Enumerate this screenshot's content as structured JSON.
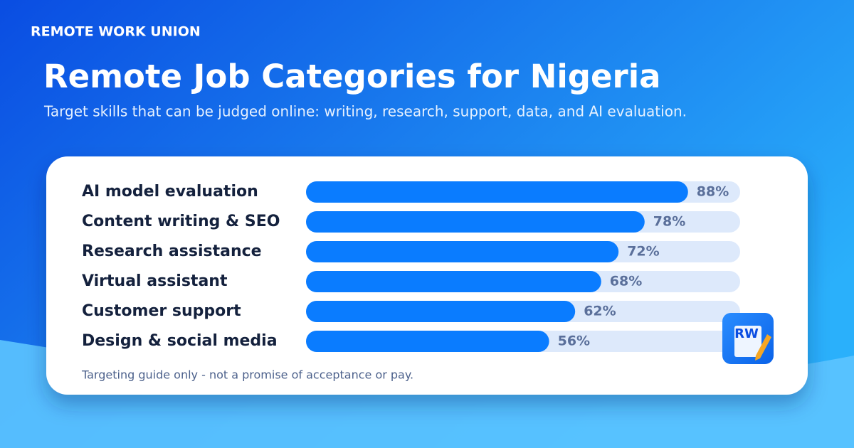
{
  "brand": "REMOTE WORK UNION",
  "footnote": "Targeting guide only - not a promise of acceptance or pay.",
  "logo_text": "RW",
  "chart_data": {
    "type": "hbar",
    "title": "Remote Job Categories for Nigeria",
    "subtitle": "Target skills that can be judged online: writing, research, support, data, and AI evaluation.",
    "categories": [
      "AI model evaluation",
      "Content writing & SEO",
      "Research assistance",
      "Virtual assistant",
      "Customer support",
      "Design & social media"
    ],
    "values": [
      88,
      78,
      72,
      68,
      62,
      56
    ],
    "value_labels": [
      "88%",
      "78%",
      "72%",
      "68%",
      "62%",
      "56%"
    ],
    "color": "#0a7cff",
    "xlim": [
      0,
      100
    ]
  }
}
